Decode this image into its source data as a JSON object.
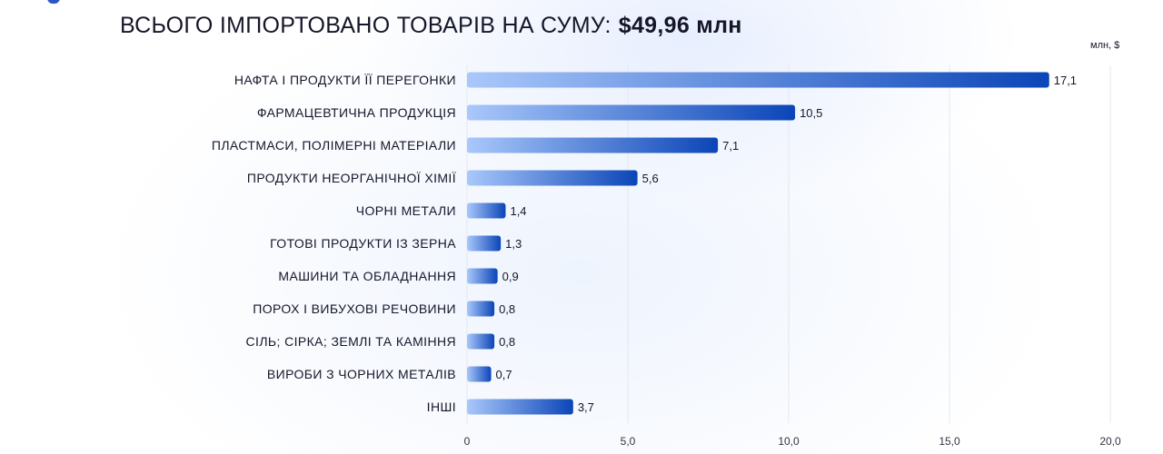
{
  "header": {
    "title_text": "ВСЬОГО ІМПОРТОВАНО ТОВАРІВ НА СУМУ:",
    "title_amount": "$49,96 млн",
    "unit_label": "млн, $"
  },
  "colors": {
    "bar_start": "#a9c8fb",
    "bar_end": "#0b45b7",
    "grid": "#e3e8f0",
    "text": "#16162a"
  },
  "chart_data": {
    "type": "bar",
    "orientation": "horizontal",
    "title": "ВСЬОГО ІМПОРТОВАНО ТОВАРІВ НА СУМУ: $49,96 млн",
    "xlabel": "млн, $",
    "ylabel": "",
    "xlim": [
      0,
      20
    ],
    "grid": true,
    "x_ticks": [
      0,
      5,
      10,
      15,
      20
    ],
    "x_tick_labels": [
      "0",
      "5,0",
      "10,0",
      "15,0",
      "20,0"
    ],
    "categories": [
      "НАФТА І ПРОДУКТИ ЇЇ ПЕРЕГОНКИ",
      "ФАРМАЦЕВТИЧНА ПРОДУКЦІЯ",
      "ПЛАСТМАСИ, ПОЛІМЕРНІ МАТЕРІАЛИ",
      "ПРОДУКТИ НЕОРГАНІЧНОЇ ХІМІЇ",
      "ЧОРНІ МЕТАЛИ",
      "ГОТОВІ ПРОДУКТИ ІЗ ЗЕРНА",
      "МАШИНИ ТА ОБЛАДНАННЯ",
      "ПОРОХ І ВИБУХОВІ РЕЧОВИНИ",
      "СІЛЬ; СІРКА; ЗЕМЛІ ТА КАМІННЯ",
      "ВИРОБИ З ЧОРНИХ МЕТАЛІВ",
      "ІНШІ"
    ],
    "values": [
      17.1,
      10.5,
      7.1,
      5.6,
      1.4,
      1.3,
      0.9,
      0.8,
      0.8,
      0.7,
      3.7
    ],
    "value_labels": [
      "17,1",
      "10,5",
      "7,1",
      "5,6",
      "1,4",
      "1,3",
      "0,9",
      "0,8",
      "0,8",
      "0,7",
      "3,7"
    ],
    "bar_lengths": [
      18.1,
      10.2,
      7.8,
      5.3,
      1.2,
      1.05,
      0.95,
      0.85,
      0.85,
      0.75,
      3.3
    ]
  }
}
